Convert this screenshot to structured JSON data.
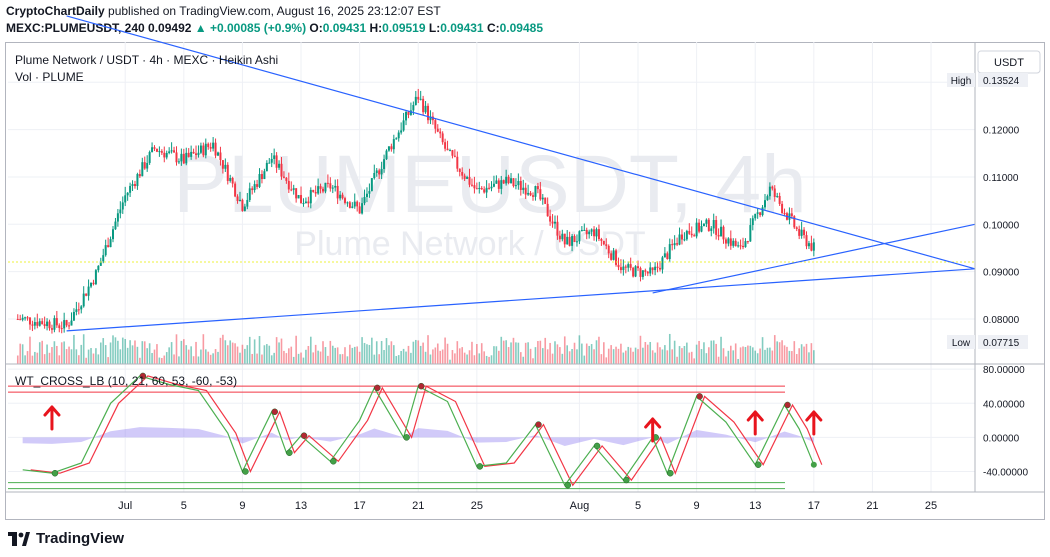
{
  "header": {
    "author": "CryptoChartDaily",
    "line1_rest": "published on TradingView.com, August 16, 2025 23:12:07 EST",
    "symbol": "MEXC:PLUMEUSDT, 240",
    "last": "0.09492",
    "change": "▲ +0.00085 (+0.9%)",
    "o_label": "O:",
    "o_value": "0.09431",
    "h_label": "H:",
    "h_value": "0.09519",
    "l_label": "L:",
    "l_value": "0.09431",
    "c_label": "C:",
    "c_value": "0.09485"
  },
  "legend": {
    "title": "Plume Network / USDT · 4h · MEXC · Heikin Ashi",
    "volume": "Vol · PLUME",
    "oscillator": "WT_CROSS_LB (10, 21, 60, 53, -60, -53)"
  },
  "watermark": {
    "big": "PLUMEUSDT, 4h",
    "small": "Plume Network / USDT"
  },
  "currency_button": "USDT",
  "price_axis": {
    "ticks": [
      "0.13000",
      "0.12000",
      "0.11000",
      "0.10000",
      "0.09000",
      "0.08000"
    ],
    "high_label": "High",
    "high_value": "0.13524",
    "low_label": "Low",
    "low_value": "0.07715"
  },
  "osc_axis": {
    "ticks": [
      "80.00000",
      "40.00000",
      "0.00000",
      "-40.00000"
    ]
  },
  "time_axis": {
    "ticks": [
      "Jul",
      "5",
      "9",
      "13",
      "17",
      "21",
      "25",
      "Aug",
      "5",
      "9",
      "13",
      "17",
      "21",
      "25"
    ]
  },
  "colors": {
    "up": "#089981",
    "down": "#f23645",
    "line": "#2962ff",
    "wt1": "#4caf50",
    "wt2": "#f23645",
    "hist": "#7b68ee"
  },
  "footer": {
    "brand": "TradingView"
  },
  "chart_data": {
    "type": "candlestick",
    "title": "Plume Network / USDT · 4h · MEXC · Heikin Ashi",
    "y_range": [
      0.0705,
      0.1385
    ],
    "x_range": [
      "2025-06-23",
      "2025-08-28"
    ],
    "high": 0.13524,
    "low": 0.07715,
    "closes": [
      {
        "date": "2025-06-24",
        "close": 0.08
      },
      {
        "date": "2025-06-27",
        "close": 0.0785
      },
      {
        "date": "2025-06-29",
        "close": 0.0895
      },
      {
        "date": "2025-07-01",
        "close": 0.106
      },
      {
        "date": "2025-07-03",
        "close": 0.116
      },
      {
        "date": "2025-07-05",
        "close": 0.1135
      },
      {
        "date": "2025-07-07",
        "close": 0.117
      },
      {
        "date": "2025-07-09",
        "close": 0.104
      },
      {
        "date": "2025-07-11",
        "close": 0.114
      },
      {
        "date": "2025-07-13",
        "close": 0.105
      },
      {
        "date": "2025-07-15",
        "close": 0.108
      },
      {
        "date": "2025-07-17",
        "close": 0.103
      },
      {
        "date": "2025-07-19",
        "close": 0.116
      },
      {
        "date": "2025-07-21",
        "close": 0.127
      },
      {
        "date": "2025-07-23",
        "close": 0.115
      },
      {
        "date": "2025-07-25",
        "close": 0.107
      },
      {
        "date": "2025-07-27",
        "close": 0.109
      },
      {
        "date": "2025-07-29",
        "close": 0.107
      },
      {
        "date": "2025-07-31",
        "close": 0.096
      },
      {
        "date": "2025-08-02",
        "close": 0.0985
      },
      {
        "date": "2025-08-04",
        "close": 0.0905
      },
      {
        "date": "2025-08-06",
        "close": 0.0895
      },
      {
        "date": "2025-08-08",
        "close": 0.098
      },
      {
        "date": "2025-08-10",
        "close": 0.1
      },
      {
        "date": "2025-08-12",
        "close": 0.0945
      },
      {
        "date": "2025-08-14",
        "close": 0.1075
      },
      {
        "date": "2025-08-16",
        "close": 0.098
      },
      {
        "date": "2025-08-17",
        "close": 0.0949
      }
    ],
    "trendlines": [
      {
        "from": {
          "date": "2025-06-27",
          "price": 0.0775
        },
        "to": {
          "date": "2025-08-28",
          "price": 0.0906
        }
      },
      {
        "from": {
          "date": "2025-08-06",
          "price": 0.0855
        },
        "to": {
          "date": "2025-08-28",
          "price": 0.1
        }
      },
      {
        "from": {
          "date": "2025-06-27",
          "price": 0.144
        },
        "to": {
          "date": "2025-08-28",
          "price": 0.0906
        }
      }
    ],
    "oscillator": {
      "name": "WT_CROSS_LB",
      "y_range": [
        -64,
        86
      ],
      "levels": [
        60,
        53,
        -60,
        -53
      ],
      "wt1": [
        {
          "date": "2025-06-24",
          "value": -38
        },
        {
          "date": "2025-06-26",
          "value": -42
        },
        {
          "date": "2025-06-28",
          "value": -30
        },
        {
          "date": "2025-06-30",
          "value": 40
        },
        {
          "date": "2025-07-02",
          "value": 72
        },
        {
          "date": "2025-07-04",
          "value": 62
        },
        {
          "date": "2025-07-06",
          "value": 55
        },
        {
          "date": "2025-07-08",
          "value": 5
        },
        {
          "date": "2025-07-09",
          "value": -40
        },
        {
          "date": "2025-07-11",
          "value": 30
        },
        {
          "date": "2025-07-12",
          "value": -18
        },
        {
          "date": "2025-07-13",
          "value": 2
        },
        {
          "date": "2025-07-15",
          "value": -28
        },
        {
          "date": "2025-07-17",
          "value": 20
        },
        {
          "date": "2025-07-18",
          "value": 58
        },
        {
          "date": "2025-07-20",
          "value": 0
        },
        {
          "date": "2025-07-21",
          "value": 60
        },
        {
          "date": "2025-07-23",
          "value": 42
        },
        {
          "date": "2025-07-25",
          "value": -34
        },
        {
          "date": "2025-07-27",
          "value": -30
        },
        {
          "date": "2025-07-29",
          "value": 15
        },
        {
          "date": "2025-07-31",
          "value": -56
        },
        {
          "date": "2025-08-02",
          "value": -10
        },
        {
          "date": "2025-08-04",
          "value": -50
        },
        {
          "date": "2025-08-06",
          "value": 0
        },
        {
          "date": "2025-08-07",
          "value": -42
        },
        {
          "date": "2025-08-09",
          "value": 48
        },
        {
          "date": "2025-08-11",
          "value": 18
        },
        {
          "date": "2025-08-13",
          "value": -32
        },
        {
          "date": "2025-08-15",
          "value": 38
        },
        {
          "date": "2025-08-16",
          "value": 10
        },
        {
          "date": "2025-08-17",
          "value": -32
        }
      ]
    }
  }
}
